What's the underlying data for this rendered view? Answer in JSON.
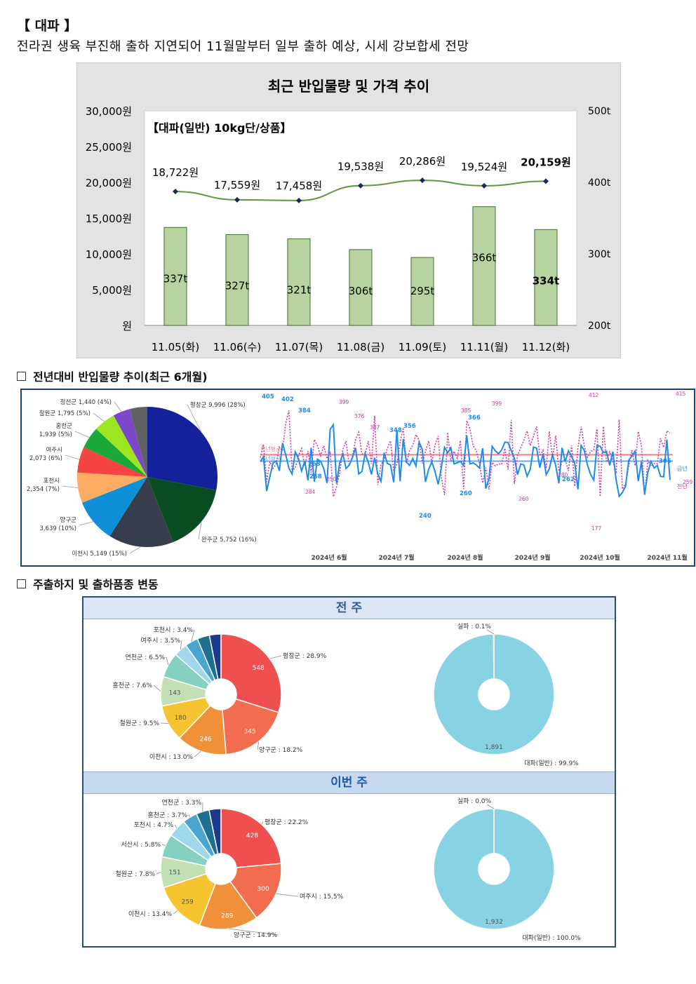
{
  "heading": "【 대파 】",
  "summary": "전라권 생육 부진해 출하 지연되어 11월말부터 일부 출하 예상, 시세 강보합세 전망",
  "section_yoy": "전년대비 반입물량 추이(최근 6개월)",
  "section_origin": "주출하지 및 출하품종 변동",
  "chart_data": [
    {
      "type": "bar",
      "title": "최근 반입물량 및 가격 추이",
      "subtitle": "【대파(일반) 10kg단/상품】",
      "categories": [
        "11.05(화)",
        "11.06(수)",
        "11.07(목)",
        "11.08(금)",
        "11.09(토)",
        "11.11(월)",
        "11.12(화)"
      ],
      "series": [
        {
          "kind": "bar",
          "axis": "right",
          "values": [
            337,
            327,
            321,
            306,
            295,
            366,
            334
          ],
          "labels": [
            "337t",
            "327t",
            "321t",
            "306t",
            "295t",
            "366t",
            "334t"
          ]
        },
        {
          "kind": "line",
          "axis": "left",
          "values": [
            18722,
            17559,
            17458,
            19538,
            20286,
            19524,
            20159
          ],
          "labels": [
            "18,722원",
            "17,559원",
            "17,458원",
            "19,538원",
            "20,286원",
            "19,524원",
            "20,159원"
          ]
        }
      ],
      "left_ticks": [
        "30,000원",
        "25,000원",
        "20,000원",
        "15,000원",
        "10,000원",
        "5,000원",
        "원"
      ],
      "ylim_left": [
        0,
        30000
      ],
      "right_ticks": [
        "500t",
        "400t",
        "300t",
        "200t"
      ],
      "ylim_right": [
        200,
        500
      ],
      "colors": {
        "bar": "#b6d3a0",
        "bar_edge": "#3f6f2f",
        "line": "#5f9a3a",
        "marker": "#1a2a5a"
      }
    },
    {
      "type": "pie",
      "slices": [
        {
          "label": "평창군 9,996 (28%)",
          "value": 28,
          "color": "#14219a"
        },
        {
          "label": "완주군 5,752 (16%)",
          "value": 16,
          "color": "#0b4d22"
        },
        {
          "label": "이천시 5,149 (15%)",
          "value": 15,
          "color": "#373e4b"
        },
        {
          "label": "양구군 3,639 (10%)",
          "value": 10,
          "color": "#0f8fd8"
        },
        {
          "label": "포천시 2,354 (7%)",
          "value": 7,
          "color": "#fbac62"
        },
        {
          "label": "여주시 2,073 (6%)",
          "value": 6,
          "color": "#f64444"
        },
        {
          "label": "홍천군 1,939 (5%)",
          "value": 5,
          "color": "#1aa83a"
        },
        {
          "label": "철원군 1,795 (5%)",
          "value": 5,
          "color": "#9be61f"
        },
        {
          "label": "정선군 1,440 (4%)",
          "value": 4,
          "color": "#7b48c8"
        },
        {
          "label": "",
          "value": 4,
          "color": "#606060"
        }
      ]
    },
    {
      "type": "line",
      "x_ticks": [
        "2024년 6월",
        "2024년 7월",
        "2024년 8월",
        "2024년 9월",
        "2024년 10월",
        "2024년 11월"
      ],
      "series": [
        {
          "name": "금년",
          "color": "#1f8be8"
        },
        {
          "name": "전년",
          "color": "#d53aa0"
        }
      ],
      "ref_lines": [
        {
          "label": "전년평균",
          "color": "#f08080"
        },
        {
          "label": "금년평균",
          "color": "#6aa8f0"
        }
      ],
      "labels_this_year": [
        "405",
        "402",
        "384",
        "348",
        "356",
        "366",
        "263",
        "268",
        "240",
        "260",
        "262",
        "305"
      ],
      "labels_last_year": [
        "399",
        "376",
        "357",
        "385",
        "399",
        "412",
        "415",
        "177",
        "259",
        "284",
        "250",
        "260",
        "280"
      ]
    },
    {
      "type": "pie",
      "panel": "전 주",
      "slices": [
        {
          "label": "평창군 : 28.9%",
          "value": 28.9,
          "inner": "548",
          "color": "#ef4f4f"
        },
        {
          "label": "양구군 : 18.2%",
          "value": 18.2,
          "inner": "345",
          "color": "#f26d50"
        },
        {
          "label": "이천시 : 13.0%",
          "value": 13.0,
          "inner": "246",
          "color": "#f0913a"
        },
        {
          "label": "철원군 : 9.5%",
          "value": 9.5,
          "inner": "180",
          "color": "#f5c430"
        },
        {
          "label": "홍천군 : 7.6%",
          "value": 7.6,
          "inner": "143",
          "color": "#c2e0b4"
        },
        {
          "label": "연천군 : 6.5%",
          "value": 6.5,
          "inner": "",
          "color": "#86d0c0"
        },
        {
          "label": "여주시 : 3.5%",
          "value": 3.5,
          "inner": "",
          "color": "#9fd8ea"
        },
        {
          "label": "포천시 : 3.4%",
          "value": 3.4,
          "inner": "",
          "color": "#4aa6d0"
        },
        {
          "label": "",
          "value": 3.2,
          "inner": "",
          "color": "#1d7090"
        },
        {
          "label": "",
          "value": 3.0,
          "inner": "",
          "color": "#1e3a8a"
        }
      ]
    },
    {
      "type": "pie",
      "panel": "전 주",
      "slices": [
        {
          "label": "대파(일반) : 99.9%",
          "value": 99.9,
          "inner": "1,891",
          "color": "#88d3e3"
        },
        {
          "label": "실파 : 0.1%",
          "value": 0.1,
          "inner": "",
          "color": "#ffffff"
        }
      ]
    },
    {
      "type": "pie",
      "panel": "이번 주",
      "slices": [
        {
          "label": "평창군 : 22.2%",
          "value": 22.2,
          "inner": "428",
          "color": "#ef4f4f"
        },
        {
          "label": "여주시 : 15.5%",
          "value": 15.5,
          "inner": "300",
          "color": "#f26d50"
        },
        {
          "label": "양구군 : 14.9%",
          "value": 14.9,
          "inner": "289",
          "color": "#f0913a"
        },
        {
          "label": "이천시 : 13.4%",
          "value": 13.4,
          "inner": "259",
          "color": "#f5c430"
        },
        {
          "label": "철원군 : 7.8%",
          "value": 7.8,
          "inner": "151",
          "color": "#c2e0b4"
        },
        {
          "label": "서산시 : 5.8%",
          "value": 5.8,
          "inner": "",
          "color": "#86d0c0"
        },
        {
          "label": "포천시 : 4.7%",
          "value": 4.7,
          "inner": "",
          "color": "#9fd8ea"
        },
        {
          "label": "홍천군 : 3.7%",
          "value": 3.7,
          "inner": "",
          "color": "#4aa6d0"
        },
        {
          "label": "연천군 : 3.3%",
          "value": 3.3,
          "inner": "",
          "color": "#1d7090"
        },
        {
          "label": "",
          "value": 3.0,
          "inner": "",
          "color": "#1e3a8a"
        }
      ]
    },
    {
      "type": "pie",
      "panel": "이번 주",
      "slices": [
        {
          "label": "대파(일반) : 100.0%",
          "value": 100.0,
          "inner": "1,932",
          "color": "#88d3e3"
        },
        {
          "label": "실파 : 0.0%",
          "value": 0.0,
          "inner": "",
          "color": "#ffffff"
        }
      ]
    }
  ],
  "panel_labels": {
    "last_week": "전 주",
    "this_week": "이번 주"
  }
}
